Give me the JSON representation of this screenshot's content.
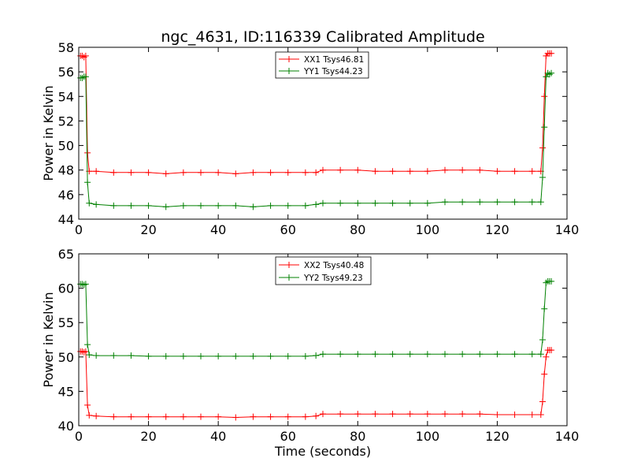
{
  "figure": {
    "title": "ngc_4631, ID:116339 Calibrated Amplitude",
    "xlabel": "Time (seconds)"
  },
  "chart_data": [
    {
      "type": "line",
      "title": "ngc_4631, ID:116339 Calibrated Amplitude",
      "xlabel": "",
      "ylabel": "Power in Kelvin",
      "xlim": [
        0,
        140
      ],
      "ylim": [
        44,
        58
      ],
      "xticks": [
        "0",
        "20",
        "40",
        "60",
        "80",
        "100",
        "120",
        "140"
      ],
      "yticks": [
        "44",
        "46",
        "48",
        "50",
        "52",
        "54",
        "56",
        "58"
      ],
      "grid": false,
      "legend_position": "top-center",
      "series": [
        {
          "name": "XX1 Tsys46.81",
          "color": "#ff0000",
          "points": [
            [
              0.5,
              57.3
            ],
            [
              1,
              57.3
            ],
            [
              1.5,
              57.2
            ],
            [
              2,
              57.3
            ],
            [
              2.5,
              49.4
            ],
            [
              3,
              47.9
            ],
            [
              5,
              47.9
            ],
            [
              10,
              47.8
            ],
            [
              15,
              47.8
            ],
            [
              20,
              47.8
            ],
            [
              25,
              47.7
            ],
            [
              30,
              47.8
            ],
            [
              35,
              47.8
            ],
            [
              40,
              47.8
            ],
            [
              45,
              47.7
            ],
            [
              50,
              47.8
            ],
            [
              55,
              47.8
            ],
            [
              60,
              47.8
            ],
            [
              65,
              47.8
            ],
            [
              68,
              47.8
            ],
            [
              70,
              48.0
            ],
            [
              75,
              48.0
            ],
            [
              80,
              48.0
            ],
            [
              85,
              47.9
            ],
            [
              90,
              47.9
            ],
            [
              95,
              47.9
            ],
            [
              100,
              47.9
            ],
            [
              105,
              48.0
            ],
            [
              110,
              48.0
            ],
            [
              115,
              48.0
            ],
            [
              120,
              47.9
            ],
            [
              125,
              47.9
            ],
            [
              130,
              47.9
            ],
            [
              132.5,
              47.9
            ],
            [
              133,
              49.8
            ],
            [
              133.5,
              54.0
            ],
            [
              134,
              57.3
            ],
            [
              134.5,
              57.5
            ],
            [
              135,
              57.5
            ],
            [
              135.5,
              57.5
            ]
          ]
        },
        {
          "name": "YY1 Tsys44.23",
          "color": "#008000",
          "points": [
            [
              0.5,
              55.5
            ],
            [
              1,
              55.5
            ],
            [
              1.5,
              55.6
            ],
            [
              2,
              55.6
            ],
            [
              2.5,
              47.0
            ],
            [
              3,
              45.3
            ],
            [
              5,
              45.2
            ],
            [
              10,
              45.1
            ],
            [
              15,
              45.1
            ],
            [
              20,
              45.1
            ],
            [
              25,
              45.0
            ],
            [
              30,
              45.1
            ],
            [
              35,
              45.1
            ],
            [
              40,
              45.1
            ],
            [
              45,
              45.1
            ],
            [
              50,
              45.0
            ],
            [
              55,
              45.1
            ],
            [
              60,
              45.1
            ],
            [
              65,
              45.1
            ],
            [
              68,
              45.2
            ],
            [
              70,
              45.3
            ],
            [
              75,
              45.3
            ],
            [
              80,
              45.3
            ],
            [
              85,
              45.3
            ],
            [
              90,
              45.3
            ],
            [
              95,
              45.3
            ],
            [
              100,
              45.3
            ],
            [
              105,
              45.4
            ],
            [
              110,
              45.4
            ],
            [
              115,
              45.4
            ],
            [
              120,
              45.4
            ],
            [
              125,
              45.4
            ],
            [
              130,
              45.4
            ],
            [
              132.5,
              45.4
            ],
            [
              133,
              47.4
            ],
            [
              133.5,
              51.5
            ],
            [
              134,
              55.6
            ],
            [
              134.5,
              55.9
            ],
            [
              135,
              55.8
            ],
            [
              135.5,
              55.9
            ]
          ]
        }
      ]
    },
    {
      "type": "line",
      "title": "",
      "xlabel": "Time (seconds)",
      "ylabel": "Power in Kelvin",
      "xlim": [
        0,
        140
      ],
      "ylim": [
        40,
        65
      ],
      "xticks": [
        "0",
        "20",
        "40",
        "60",
        "80",
        "100",
        "120",
        "140"
      ],
      "yticks": [
        "40",
        "45",
        "50",
        "55",
        "60",
        "65"
      ],
      "grid": false,
      "legend_position": "top-center",
      "series": [
        {
          "name": "XX2 Tsys40.48",
          "color": "#ff0000",
          "points": [
            [
              0.5,
              50.8
            ],
            [
              1,
              50.8
            ],
            [
              1.5,
              50.7
            ],
            [
              2,
              50.8
            ],
            [
              2.5,
              43.0
            ],
            [
              3,
              41.5
            ],
            [
              5,
              41.4
            ],
            [
              10,
              41.3
            ],
            [
              15,
              41.3
            ],
            [
              20,
              41.3
            ],
            [
              25,
              41.3
            ],
            [
              30,
              41.3
            ],
            [
              35,
              41.3
            ],
            [
              40,
              41.3
            ],
            [
              45,
              41.2
            ],
            [
              50,
              41.3
            ],
            [
              55,
              41.3
            ],
            [
              60,
              41.3
            ],
            [
              65,
              41.3
            ],
            [
              68,
              41.4
            ],
            [
              70,
              41.7
            ],
            [
              75,
              41.7
            ],
            [
              80,
              41.7
            ],
            [
              85,
              41.7
            ],
            [
              90,
              41.7
            ],
            [
              95,
              41.7
            ],
            [
              100,
              41.7
            ],
            [
              105,
              41.7
            ],
            [
              110,
              41.7
            ],
            [
              115,
              41.7
            ],
            [
              120,
              41.6
            ],
            [
              125,
              41.6
            ],
            [
              130,
              41.6
            ],
            [
              132.5,
              41.6
            ],
            [
              133,
              43.5
            ],
            [
              133.5,
              47.5
            ],
            [
              134,
              50.0
            ],
            [
              134.5,
              51.0
            ],
            [
              135,
              51.0
            ],
            [
              135.5,
              51.0
            ]
          ]
        },
        {
          "name": "YY2 Tsys49.23",
          "color": "#008000",
          "points": [
            [
              0.5,
              60.6
            ],
            [
              1,
              60.6
            ],
            [
              1.5,
              60.5
            ],
            [
              2,
              60.6
            ],
            [
              2.5,
              51.8
            ],
            [
              3,
              50.3
            ],
            [
              5,
              50.2
            ],
            [
              10,
              50.2
            ],
            [
              15,
              50.2
            ],
            [
              20,
              50.1
            ],
            [
              25,
              50.1
            ],
            [
              30,
              50.1
            ],
            [
              35,
              50.1
            ],
            [
              40,
              50.1
            ],
            [
              45,
              50.1
            ],
            [
              50,
              50.1
            ],
            [
              55,
              50.1
            ],
            [
              60,
              50.1
            ],
            [
              65,
              50.1
            ],
            [
              68,
              50.2
            ],
            [
              70,
              50.4
            ],
            [
              75,
              50.4
            ],
            [
              80,
              50.4
            ],
            [
              85,
              50.4
            ],
            [
              90,
              50.4
            ],
            [
              95,
              50.4
            ],
            [
              100,
              50.4
            ],
            [
              105,
              50.4
            ],
            [
              110,
              50.4
            ],
            [
              115,
              50.4
            ],
            [
              120,
              50.4
            ],
            [
              125,
              50.4
            ],
            [
              130,
              50.4
            ],
            [
              132.5,
              50.4
            ],
            [
              133,
              52.5
            ],
            [
              133.5,
              57.0
            ],
            [
              134,
              60.8
            ],
            [
              134.5,
              61.0
            ],
            [
              135,
              61.0
            ],
            [
              135.5,
              61.0
            ]
          ]
        }
      ]
    }
  ]
}
